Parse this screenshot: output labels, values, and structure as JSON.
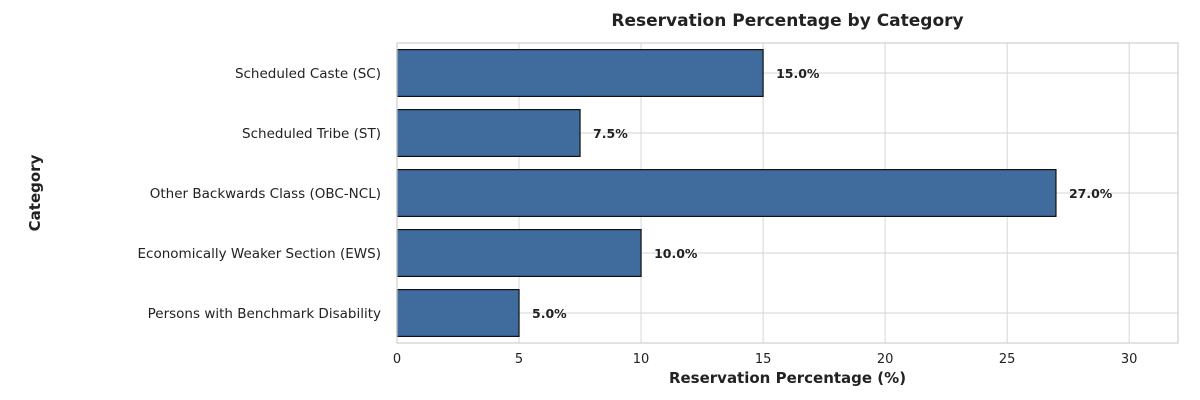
{
  "chart_data": {
    "type": "bar",
    "orientation": "horizontal",
    "title": "Reservation Percentage by Category",
    "xlabel": "Reservation Percentage (%)",
    "ylabel": "Category",
    "categories": [
      "Scheduled Caste (SC)",
      "Scheduled Tribe (ST)",
      "Other Backwards Class (OBC-NCL)",
      "Economically Weaker Section (EWS)",
      "Persons with Benchmark Disability"
    ],
    "values": [
      15.0,
      7.5,
      27.0,
      10.0,
      5.0
    ],
    "data_labels": [
      "15.0%",
      "7.5%",
      "27.0%",
      "10.0%",
      "5.0%"
    ],
    "xlim": [
      0,
      32
    ],
    "xticks": [
      0,
      5,
      10,
      15,
      20,
      25,
      30
    ],
    "grid": true,
    "bar_color": "#3f6c9d"
  }
}
